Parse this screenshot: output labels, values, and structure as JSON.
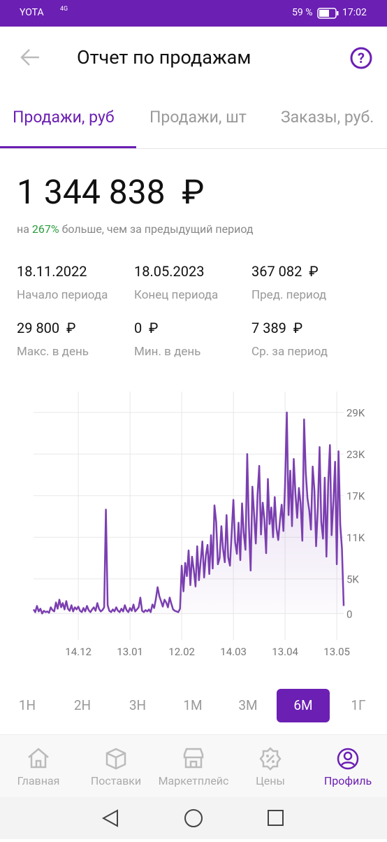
{
  "status": {
    "carrier": "YOTA",
    "network": "4G",
    "battery": "59 %",
    "time": "17:02"
  },
  "header": {
    "title": "Отчет по продажам"
  },
  "tabs": {
    "items": [
      "Продажи, руб",
      "Продажи, шт",
      "Заказы, руб."
    ],
    "active": 0
  },
  "summary": {
    "total": "1 344 838  ₽",
    "prefix": "на",
    "percent": "267%",
    "suffix": "больше, чем за предыдущий период"
  },
  "stats": [
    {
      "value": "18.11.2022",
      "label": "Начало периода"
    },
    {
      "value": "18.05.2023",
      "label": "Конец периода"
    },
    {
      "value": "367 082  ₽",
      "label": "Пред. период"
    },
    {
      "value": "29 800  ₽",
      "label": "Макс. в день"
    },
    {
      "value": "0  ₽",
      "label": "Мин. в день"
    },
    {
      "value": "7 389  ₽",
      "label": "Ср. за период"
    }
  ],
  "chart_data": {
    "type": "line",
    "color": "#7b3fb0",
    "grid": true,
    "values": [
      600,
      200,
      1100,
      300,
      700,
      0,
      400,
      200,
      300,
      100,
      900,
      500,
      300,
      1600,
      700,
      2000,
      900,
      1500,
      600,
      1800,
      700,
      400,
      1200,
      300,
      900,
      600,
      1000,
      400,
      200,
      800,
      300,
      1100,
      500,
      200,
      600,
      900,
      400,
      1500,
      700,
      300,
      500,
      900,
      15000,
      1200,
      400,
      200,
      600,
      300,
      900,
      400,
      200,
      700,
      300,
      1200,
      500,
      200,
      800,
      400,
      1300,
      300,
      600,
      900,
      2300,
      400,
      200,
      500,
      300,
      600,
      200,
      1300,
      800,
      2100,
      3800,
      2500,
      1800,
      1000,
      2000,
      1600,
      900,
      2300,
      1400,
      600,
      400,
      300,
      200,
      700,
      6900,
      3200,
      7300,
      5400,
      9100,
      4100,
      8200,
      6300,
      3900,
      9700,
      4800,
      7600,
      10400,
      5200,
      8400,
      9900,
      5700,
      11300,
      6500,
      15600,
      13200,
      7100,
      8000,
      12600,
      9300,
      7400,
      14200,
      8100,
      6900,
      11800,
      16400,
      10300,
      8600,
      13100,
      7700,
      15900,
      11600,
      9200,
      23000,
      12800,
      6200,
      18300,
      14400,
      10100,
      17200,
      21300,
      11400,
      16000,
      13600,
      8700,
      19400,
      12900,
      15300,
      11000,
      16800,
      12300,
      10600,
      13400,
      15700,
      11900,
      18800,
      29000,
      14200,
      20600,
      12600,
      22300,
      17400,
      13800,
      18100,
      15900,
      10500,
      28000,
      20400,
      16600,
      14900,
      12100,
      21200,
      17800,
      9700,
      15300,
      24000,
      13200,
      10800,
      19600,
      8200,
      18700,
      24300,
      11300,
      16100,
      21900,
      7100,
      23400,
      12800,
      9400,
      1100
    ],
    "xlim": [
      0,
      180
    ],
    "xticks": [
      {
        "value": 26,
        "label": "14.12"
      },
      {
        "value": 56,
        "label": "13.01"
      },
      {
        "value": 86,
        "label": "12.02"
      },
      {
        "value": 116,
        "label": "14.03"
      },
      {
        "value": 146,
        "label": "13.04"
      },
      {
        "value": 176,
        "label": "13.05"
      }
    ],
    "ylim": [
      -3800,
      32000
    ],
    "yticks": [
      0,
      {
        "value": 5000,
        "label": "5K"
      },
      {
        "value": 11000,
        "label": "11K"
      },
      {
        "value": 17000,
        "label": "17K"
      },
      {
        "value": 23000,
        "label": "23K"
      },
      {
        "value": 29000,
        "label": "29K"
      }
    ]
  },
  "periods": {
    "items": [
      "1Н",
      "2Н",
      "3Н",
      "1М",
      "3М",
      "6М",
      "1Г"
    ],
    "active": 5
  },
  "nav": {
    "items": [
      "Главная",
      "Поставки",
      "Маркетплейс",
      "Цены",
      "Профиль"
    ],
    "active": 4
  }
}
